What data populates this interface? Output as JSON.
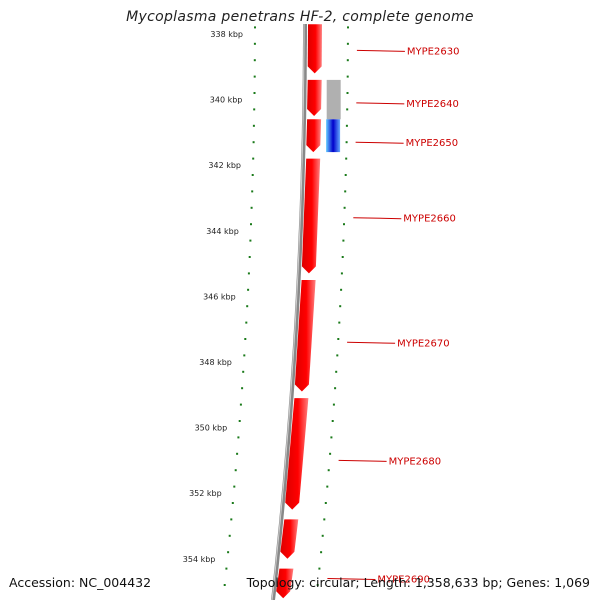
{
  "title": "Mycoplasma penetrans HF-2, complete genome",
  "footer": {
    "accession": "Accession: NC_004432",
    "topology": "Topology: circular; Length: 1,358,633 bp; Genes: 1,069"
  },
  "colors": {
    "gene": "#ff0000",
    "gene_light": "#ff8080",
    "tick": "#1a7a1a",
    "backbone": "#888888",
    "label": "#cc0000",
    "gray_feature": "#b0b0b0",
    "blue_feature": "#1a66ff"
  },
  "axis": {
    "unit": "kbp",
    "ticks": [
      {
        "kbp": 338,
        "label": "338 kbp"
      },
      {
        "kbp": 340,
        "label": "340 kbp"
      },
      {
        "kbp": 342,
        "label": "342 kbp"
      },
      {
        "kbp": 344,
        "label": "344 kbp"
      },
      {
        "kbp": 346,
        "label": "346 kbp"
      },
      {
        "kbp": 348,
        "label": "348 kbp"
      },
      {
        "kbp": 350,
        "label": "350 kbp"
      },
      {
        "kbp": 352,
        "label": "352 kbp"
      },
      {
        "kbp": 354,
        "label": "354 kbp"
      }
    ]
  },
  "genes": [
    {
      "start_kbp": 337.7,
      "end_kbp": 339.2
    },
    {
      "start_kbp": 339.4,
      "end_kbp": 340.5
    },
    {
      "start_kbp": 340.6,
      "end_kbp": 341.6
    },
    {
      "start_kbp": 341.8,
      "end_kbp": 345.3
    },
    {
      "start_kbp": 345.5,
      "end_kbp": 348.9
    },
    {
      "start_kbp": 349.1,
      "end_kbp": 352.5
    },
    {
      "start_kbp": 352.8,
      "end_kbp": 354.0
    },
    {
      "start_kbp": 354.3,
      "end_kbp": 355.2
    }
  ],
  "other_features": [
    {
      "type": "gray",
      "start_kbp": 339.4,
      "end_kbp": 340.6
    },
    {
      "type": "blue",
      "start_kbp": 340.6,
      "end_kbp": 341.6
    }
  ],
  "gene_labels": [
    {
      "name": "MYPE2630",
      "kbp": 338.5
    },
    {
      "name": "MYPE2640",
      "kbp": 340.1
    },
    {
      "name": "MYPE2650",
      "kbp": 341.3
    },
    {
      "name": "MYPE2660",
      "kbp": 343.6
    },
    {
      "name": "MYPE2670",
      "kbp": 347.4
    },
    {
      "name": "MYPE2680",
      "kbp": 351.0
    },
    {
      "name": "MYPE2690",
      "kbp": 354.6
    }
  ]
}
